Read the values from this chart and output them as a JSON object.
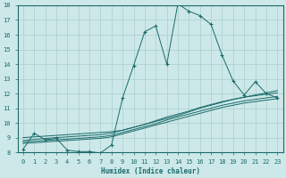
{
  "xlabel": "Humidex (Indice chaleur)",
  "bg_color": "#cde8e8",
  "line_color": "#1a6b6b",
  "grid_color": "#aacece",
  "xlim": [
    -0.5,
    23.5
  ],
  "ylim": [
    8,
    18
  ],
  "xticks": [
    0,
    1,
    2,
    3,
    4,
    5,
    6,
    7,
    8,
    9,
    10,
    11,
    12,
    13,
    14,
    15,
    16,
    17,
    18,
    19,
    20,
    21,
    22,
    23
  ],
  "yticks": [
    8,
    9,
    10,
    11,
    12,
    13,
    14,
    15,
    16,
    17,
    18
  ],
  "main_line": {
    "x": [
      0,
      1,
      2,
      3,
      4,
      5,
      6,
      7,
      8,
      9,
      10,
      11,
      12,
      13,
      14,
      15,
      16,
      17,
      18,
      19,
      20,
      21,
      22,
      23
    ],
    "y": [
      8.2,
      9.3,
      8.85,
      8.95,
      8.15,
      8.05,
      8.05,
      7.95,
      8.5,
      11.7,
      13.9,
      16.2,
      16.6,
      14.0,
      18.1,
      17.6,
      17.3,
      16.7,
      14.6,
      12.85,
      11.9,
      12.8,
      12.0,
      11.7
    ]
  },
  "linear_lines": [
    {
      "x": [
        0,
        1,
        2,
        3,
        4,
        5,
        6,
        7,
        8,
        9,
        10,
        11,
        12,
        13,
        14,
        15,
        16,
        17,
        18,
        19,
        20,
        21,
        22,
        23
      ],
      "y": [
        9.0,
        9.05,
        9.1,
        9.15,
        9.2,
        9.25,
        9.3,
        9.35,
        9.4,
        9.5,
        9.7,
        9.9,
        10.1,
        10.3,
        10.5,
        10.75,
        11.0,
        11.2,
        11.4,
        11.6,
        11.75,
        11.9,
        12.05,
        12.2
      ]
    },
    {
      "x": [
        0,
        1,
        2,
        3,
        4,
        5,
        6,
        7,
        8,
        9,
        10,
        11,
        12,
        13,
        14,
        15,
        16,
        17,
        18,
        19,
        20,
        21,
        22,
        23
      ],
      "y": [
        8.8,
        8.87,
        8.94,
        9.0,
        9.05,
        9.1,
        9.15,
        9.2,
        9.3,
        9.5,
        9.7,
        9.9,
        10.15,
        10.4,
        10.6,
        10.8,
        11.05,
        11.25,
        11.45,
        11.6,
        11.75,
        11.85,
        11.95,
        12.05
      ]
    },
    {
      "x": [
        0,
        1,
        2,
        3,
        4,
        5,
        6,
        7,
        8,
        9,
        10,
        11,
        12,
        13,
        14,
        15,
        16,
        17,
        18,
        19,
        20,
        21,
        22,
        23
      ],
      "y": [
        8.7,
        8.75,
        8.8,
        8.85,
        8.9,
        8.95,
        9.0,
        9.05,
        9.15,
        9.35,
        9.55,
        9.75,
        9.95,
        10.2,
        10.4,
        10.6,
        10.8,
        11.0,
        11.2,
        11.35,
        11.5,
        11.6,
        11.7,
        11.8
      ]
    },
    {
      "x": [
        0,
        1,
        2,
        3,
        4,
        5,
        6,
        7,
        8,
        9,
        10,
        11,
        12,
        13,
        14,
        15,
        16,
        17,
        18,
        19,
        20,
        21,
        22,
        23
      ],
      "y": [
        8.6,
        8.65,
        8.7,
        8.75,
        8.8,
        8.85,
        8.9,
        8.95,
        9.05,
        9.25,
        9.45,
        9.65,
        9.85,
        10.05,
        10.25,
        10.45,
        10.65,
        10.85,
        11.05,
        11.2,
        11.35,
        11.45,
        11.55,
        11.65
      ]
    }
  ]
}
